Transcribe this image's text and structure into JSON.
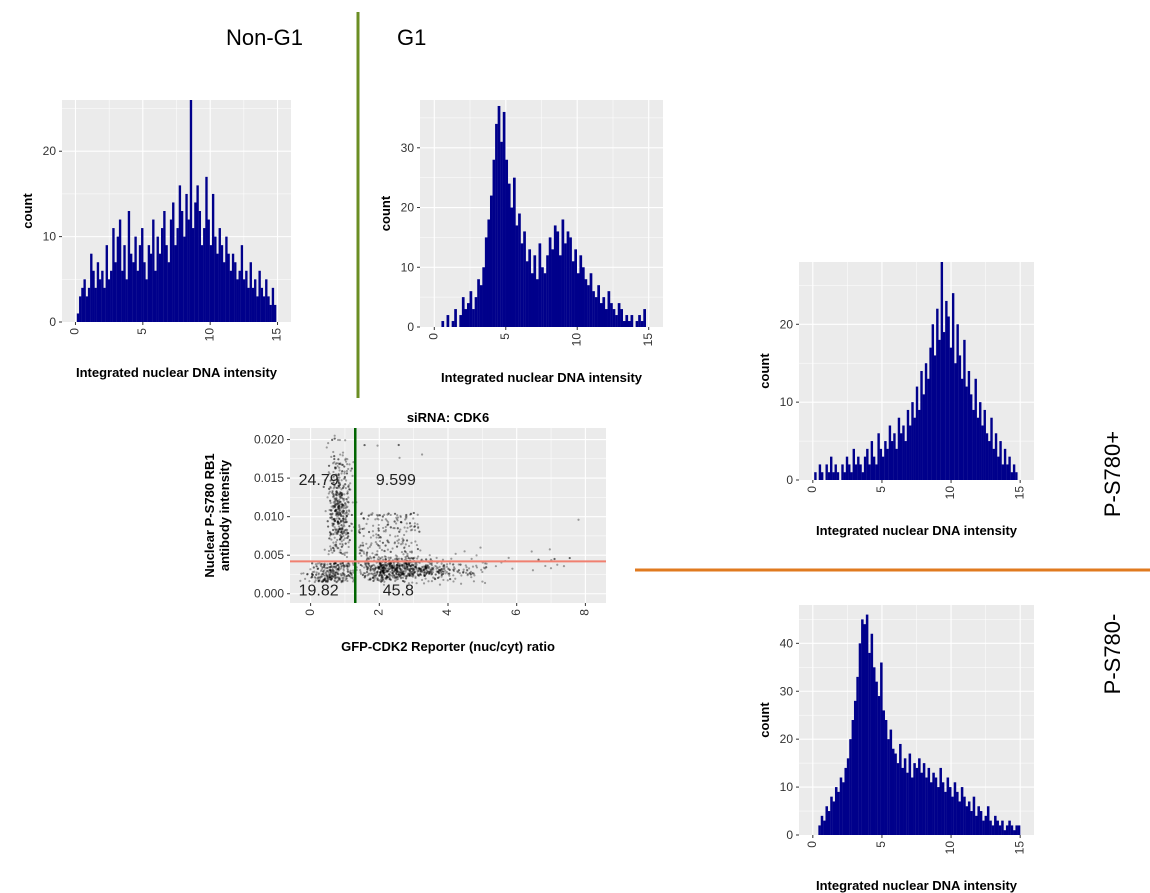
{
  "header": {
    "non_g1": "Non-G1",
    "g1": "G1"
  },
  "side_labels": {
    "pos": "P-S780+",
    "neg": "P-S780-"
  },
  "colors": {
    "bar": "#00008b",
    "panel_bg": "#ebebeb",
    "grid": "#ffffff",
    "g1_divider": "#6b8e23",
    "p_divider": "#e07a1f",
    "gate_vertical": "#006400",
    "gate_horizontal": "#f08070",
    "points": "#000000"
  },
  "chart_data": [
    {
      "id": "hist-nong1",
      "type": "bar",
      "xlabel": "Integrated nuclear DNA intensity",
      "ylabel": "count",
      "xlim": [
        -1,
        16
      ],
      "ylim": [
        0,
        26
      ],
      "xticks": [
        0,
        5,
        10,
        15
      ],
      "yticks": [
        0,
        10,
        20
      ],
      "x_start": 0.1,
      "x_end": 14.9,
      "values": [
        1,
        3,
        4,
        5,
        3,
        4,
        8,
        6,
        4,
        7,
        5,
        6,
        4,
        9,
        5,
        6,
        11,
        7,
        10,
        12,
        6,
        9,
        5,
        13,
        8,
        7,
        10,
        6,
        9,
        11,
        7,
        5,
        9,
        8,
        12,
        6,
        10,
        8,
        11,
        13,
        9,
        7,
        12,
        14,
        9,
        11,
        16,
        13,
        10,
        15,
        12,
        26,
        11,
        14,
        16,
        13,
        9,
        11,
        17,
        12,
        9,
        15,
        10,
        8,
        11,
        9,
        7,
        10,
        8,
        6,
        8,
        7,
        5,
        6,
        9,
        5,
        6,
        4,
        7,
        4,
        5,
        3,
        6,
        4,
        3,
        5,
        3,
        2,
        4,
        2
      ]
    },
    {
      "id": "hist-g1",
      "type": "bar",
      "xlabel": "Integrated nuclear DNA intensity",
      "ylabel": "count",
      "xlim": [
        -1,
        16
      ],
      "ylim": [
        0,
        38
      ],
      "xticks": [
        0,
        5,
        10,
        15
      ],
      "yticks": [
        0,
        10,
        20,
        30
      ],
      "x_start": 0.5,
      "x_end": 14.8,
      "values": [
        1,
        0,
        2,
        0,
        1,
        3,
        0,
        2,
        5,
        3,
        4,
        6,
        3,
        5,
        8,
        7,
        10,
        15,
        18,
        22,
        28,
        34,
        37,
        31,
        36,
        28,
        24,
        20,
        25,
        17,
        19,
        14,
        16,
        11,
        13,
        9,
        12,
        8,
        14,
        10,
        9,
        12,
        15,
        13,
        17,
        16,
        12,
        18,
        14,
        16,
        15,
        11,
        13,
        9,
        12,
        10,
        8,
        7,
        9,
        6,
        5,
        7,
        4,
        5,
        3,
        6,
        4,
        3,
        2,
        4,
        3,
        1,
        2,
        1,
        2,
        0,
        1,
        2,
        1,
        3
      ]
    },
    {
      "id": "hist-pos",
      "type": "bar",
      "xlabel": "Integrated nuclear DNA intensity",
      "ylabel": "count",
      "xlim": [
        -1,
        16
      ],
      "ylim": [
        0,
        28
      ],
      "xticks": [
        0,
        5,
        10,
        15
      ],
      "yticks": [
        0,
        10,
        20
      ],
      "x_start": 0.1,
      "x_end": 14.8,
      "values": [
        1,
        0,
        2,
        1,
        0,
        2,
        1,
        3,
        1,
        2,
        1,
        0,
        2,
        1,
        3,
        2,
        1,
        4,
        2,
        3,
        2,
        1,
        3,
        4,
        2,
        5,
        3,
        2,
        6,
        4,
        3,
        5,
        4,
        7,
        5,
        6,
        4,
        8,
        6,
        7,
        5,
        9,
        7,
        10,
        8,
        12,
        9,
        14,
        11,
        15,
        13,
        17,
        20,
        16,
        22,
        18,
        28,
        19,
        23,
        21,
        17,
        24,
        15,
        20,
        16,
        13,
        18,
        12,
        14,
        11,
        9,
        13,
        8,
        10,
        7,
        9,
        6,
        5,
        8,
        4,
        6,
        3,
        5,
        2,
        4,
        2,
        3,
        1,
        2,
        1
      ]
    },
    {
      "id": "hist-neg",
      "type": "bar",
      "xlabel": "Integrated nuclear DNA intensity",
      "ylabel": "count",
      "xlim": [
        -1,
        16
      ],
      "ylim": [
        0,
        48
      ],
      "xticks": [
        0,
        5,
        10,
        15
      ],
      "yticks": [
        0,
        10,
        20,
        30,
        40
      ],
      "x_start": 0.4,
      "x_end": 15.0,
      "values": [
        2,
        4,
        3,
        6,
        5,
        8,
        7,
        10,
        9,
        12,
        11,
        14,
        16,
        20,
        24,
        28,
        33,
        40,
        45,
        44,
        46,
        38,
        42,
        35,
        32,
        29,
        36,
        26,
        24,
        20,
        22,
        18,
        17,
        15,
        19,
        14,
        16,
        13,
        17,
        12,
        15,
        14,
        16,
        13,
        15,
        12,
        14,
        11,
        13,
        12,
        10,
        14,
        11,
        9,
        12,
        10,
        8,
        11,
        9,
        7,
        10,
        8,
        6,
        7,
        5,
        8,
        4,
        6,
        5,
        3,
        4,
        6,
        3,
        2,
        4,
        3,
        2,
        3,
        1,
        2,
        3,
        2,
        1,
        2,
        2
      ]
    },
    {
      "id": "scatter",
      "type": "scatter",
      "title": "siRNA: CDK6",
      "xlabel": "GFP-CDK2 Reporter (nuc/cyt) ratio",
      "ylabel": "Nuclear P-S780 RB1\nantibody intensity",
      "xlim": [
        -0.6,
        8.6
      ],
      "ylim": [
        -0.0012,
        0.0215
      ],
      "xticks": [
        0,
        2,
        4,
        6,
        8
      ],
      "yticks": [
        0.0,
        0.005,
        0.01,
        0.015,
        0.02
      ],
      "ytick_labels": [
        "0.000",
        "0.005",
        "0.010",
        "0.015",
        "0.020"
      ],
      "gate_x": 1.3,
      "gate_y": 0.0042,
      "quadrant_labels": [
        {
          "text": "24.79",
          "x": -0.35,
          "y": 0.0141
        },
        {
          "text": "9.599",
          "x": 1.9,
          "y": 0.0141
        },
        {
          "text": "19.82",
          "x": -0.35,
          "y": -0.0002
        },
        {
          "text": "45.8",
          "x": 2.1,
          "y": -0.0002
        }
      ],
      "point_count": 1900
    }
  ]
}
